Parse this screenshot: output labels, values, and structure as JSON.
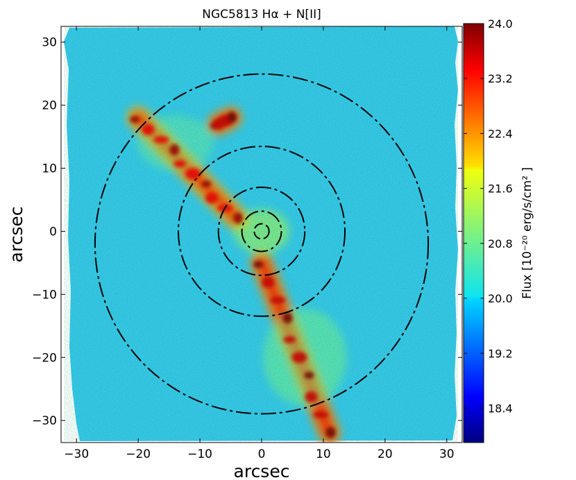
{
  "chart_data": {
    "type": "heatmap",
    "title": "NGC5813 Hα + N[II]",
    "xlabel": "arcsec",
    "ylabel": "arcsec",
    "xlim": [
      -32.5,
      32.5
    ],
    "ylim": [
      -33.5,
      32.5
    ],
    "xticks": [
      -30,
      -20,
      -10,
      0,
      10,
      20,
      30
    ],
    "yticks": [
      -30,
      -20,
      -10,
      0,
      10,
      20,
      30
    ],
    "colorbar": {
      "label": "Flux [10⁻²⁰ erg/s/cm² ]",
      "range": [
        17.9,
        24.0
      ],
      "ticks": [
        18.4,
        19.2,
        20.0,
        20.8,
        21.6,
        22.4,
        23.2,
        24.0
      ],
      "tick_labels": [
        "18.4",
        "19.2",
        "20.0",
        "20.8",
        "21.6",
        "22.4",
        "23.2",
        "24.0"
      ]
    },
    "contours": [
      {
        "center": [
          0,
          0
        ],
        "radius": 1.2
      },
      {
        "center": [
          0,
          0
        ],
        "radius": 3.2
      },
      {
        "center": [
          0,
          0
        ],
        "radius": 7.0
      },
      {
        "center": [
          0,
          0
        ],
        "radius": 13.5
      },
      {
        "center": [
          0,
          -2
        ],
        "radius": 27.0
      }
    ],
    "features": [
      {
        "name": "north-west filament",
        "from": [
          -20,
          18
        ],
        "to": [
          -4,
          2
        ],
        "peak_flux": 23.8
      },
      {
        "name": "north-west clump",
        "from": [
          -7,
          17
        ],
        "to": [
          -5,
          18
        ],
        "peak_flux": 24.0
      },
      {
        "name": "southern filament",
        "from": [
          0,
          -5
        ],
        "to": [
          11,
          -32
        ],
        "peak_flux": 24.0
      }
    ]
  }
}
